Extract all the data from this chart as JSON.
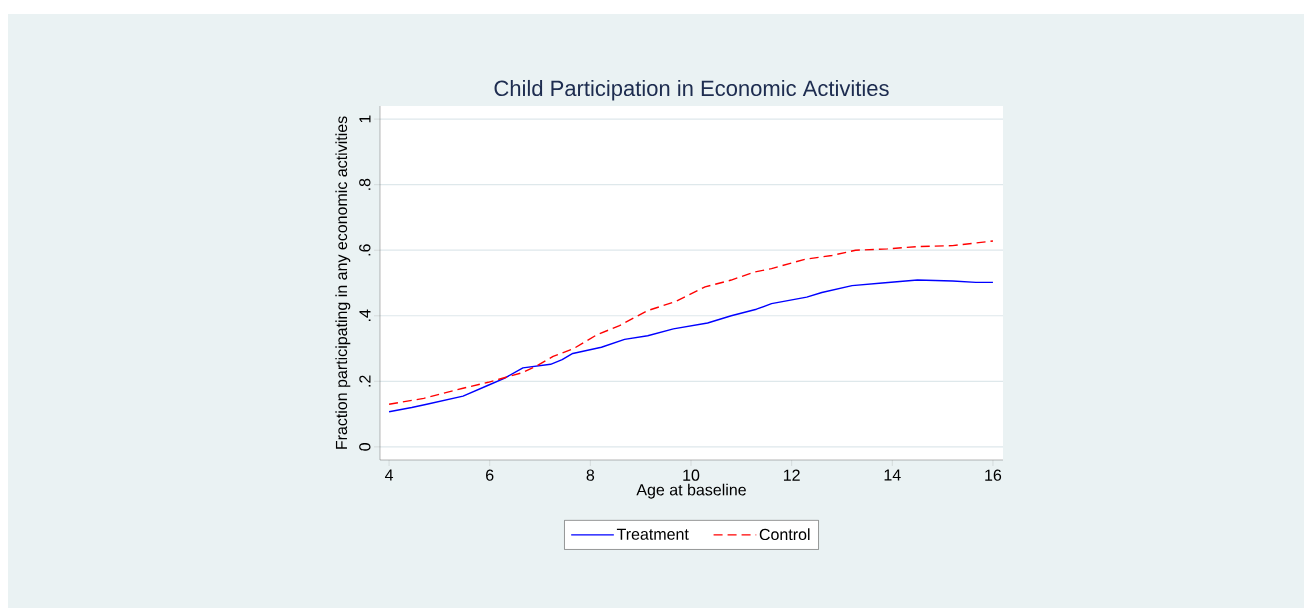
{
  "chart_data": {
    "type": "line",
    "title": "Child Participation in Economic Activities",
    "xlabel": "Age at baseline",
    "ylabel": "Fraction participating in any economic activities",
    "xlim": [
      3.82,
      16.2
    ],
    "ylim": [
      -0.04,
      1.04
    ],
    "xticks": [
      4,
      6,
      8,
      10,
      12,
      14,
      16
    ],
    "yticks": [
      0,
      {
        "value": 0.2,
        "label": ".2"
      },
      {
        "value": 0.4,
        "label": ".4"
      },
      {
        "value": 0.6,
        "label": ".6"
      },
      {
        "value": 0.8,
        "label": ".8"
      },
      1
    ],
    "grid": "y",
    "legend": "bottom",
    "marker": "none",
    "series": [
      {
        "name": "Treatment",
        "color": "#0000ff",
        "line_style": "solid",
        "x": [
          4,
          4.45,
          4.75,
          5.47,
          5.97,
          6.3,
          6.66,
          7.21,
          7.44,
          7.65,
          8.22,
          8.68,
          9.14,
          9.65,
          10.33,
          10.8,
          11.3,
          11.6,
          12.3,
          12.6,
          13.2,
          13.8,
          14.5,
          15.2,
          15.66,
          16
        ],
        "values": [
          0.107,
          0.12,
          0.13,
          0.155,
          0.188,
          0.21,
          0.241,
          0.252,
          0.266,
          0.285,
          0.304,
          0.328,
          0.339,
          0.36,
          0.378,
          0.4,
          0.42,
          0.437,
          0.457,
          0.471,
          0.492,
          0.5,
          0.509,
          0.506,
          0.502,
          0.502
        ]
      },
      {
        "name": "Control",
        "color": "#ff0000",
        "line_style": "dashed",
        "x": [
          4,
          4.69,
          5.47,
          5.97,
          6.66,
          6.94,
          7.26,
          7.67,
          8.13,
          8.58,
          9.14,
          9.69,
          10.28,
          10.8,
          11.25,
          11.6,
          12.26,
          12.8,
          13.27,
          13.9,
          14.5,
          15.2,
          16
        ],
        "values": [
          0.13,
          0.148,
          0.179,
          0.197,
          0.227,
          0.248,
          0.276,
          0.3,
          0.342,
          0.37,
          0.416,
          0.443,
          0.488,
          0.509,
          0.533,
          0.544,
          0.572,
          0.584,
          0.6,
          0.604,
          0.611,
          0.614,
          0.628
        ]
      }
    ]
  }
}
